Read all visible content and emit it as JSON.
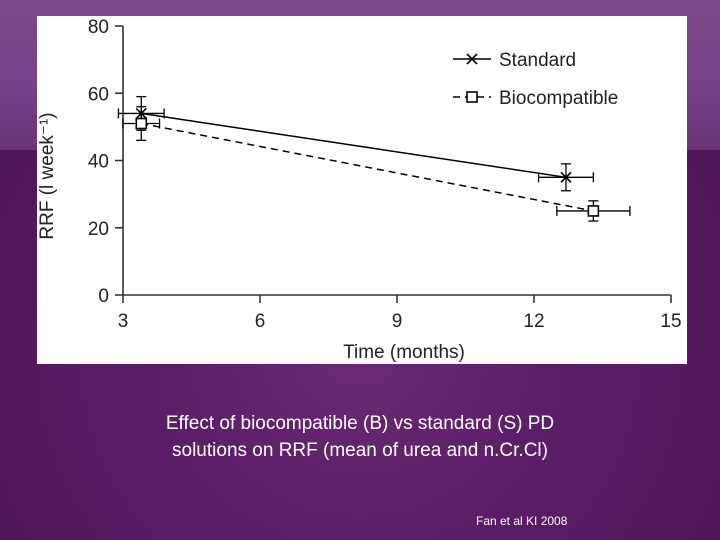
{
  "chart_data": {
    "type": "line",
    "xlabel": "Time (months)",
    "ylabel": "RRF (l week⁻¹)",
    "xlim": [
      3,
      15
    ],
    "ylim": [
      0,
      80
    ],
    "x_ticks": [
      3,
      6,
      9,
      12,
      15
    ],
    "y_ticks": [
      0,
      20,
      40,
      60,
      80
    ],
    "grid": false,
    "legend_position": "top-right",
    "series": [
      {
        "name": "Standard",
        "marker": "x",
        "line_style": "solid",
        "color": "#000000",
        "points": [
          {
            "x": 3.4,
            "y": 54,
            "xerr": 0.5,
            "yerr": 5
          },
          {
            "x": 12.7,
            "y": 35,
            "xerr": 0.6,
            "yerr": 4
          }
        ]
      },
      {
        "name": "Biocompatible",
        "marker": "square",
        "line_style": "dashed",
        "color": "#000000",
        "points": [
          {
            "x": 3.4,
            "y": 51,
            "xerr": 0.4,
            "yerr": 5
          },
          {
            "x": 13.3,
            "y": 25,
            "xerr": 0.8,
            "yerr": 3
          }
        ]
      }
    ]
  },
  "caption": {
    "line1": "Effect of biocompatible (B) vs standard (S) PD",
    "line2": "solutions on RRF (mean of urea and n.Cr.Cl)"
  },
  "citation": "Fan et al KI 2008"
}
